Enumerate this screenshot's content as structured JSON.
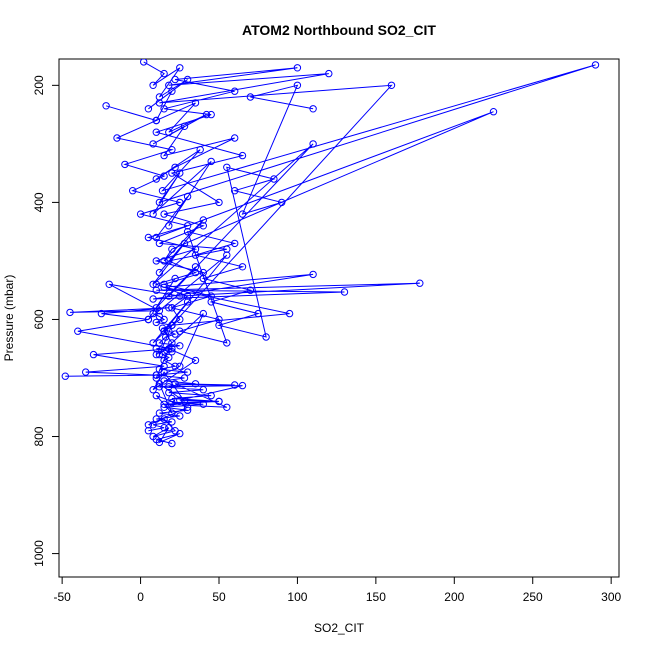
{
  "chart_data": {
    "type": "scatter",
    "title": "ATOM2 Northbound SO2_CIT",
    "xlabel": "SO2_CIT",
    "ylabel": "Pressure (mbar)",
    "xlim": [
      -52,
      305
    ],
    "ylim": [
      1040,
      155
    ],
    "y_reversed": true,
    "x_ticks": [
      -50,
      0,
      50,
      100,
      150,
      200,
      250,
      300
    ],
    "y_ticks": [
      200,
      400,
      600,
      800,
      1000
    ],
    "grid": false,
    "legend": "none",
    "point_style": "open-circle",
    "line_connected": true,
    "color": "#0000ff",
    "series": [
      {
        "x": [
          2,
          15,
          8,
          25,
          12,
          30,
          5,
          20,
          10,
          35,
          18,
          42,
          8,
          28,
          15,
          60,
          22,
          10,
          38,
          14,
          290,
          12,
          25,
          8,
          45,
          18,
          30,
          10,
          225,
          20,
          15,
          40,
          12,
          28,
          8,
          110,
          18,
          35,
          10,
          22,
          5,
          55,
          15,
          30,
          8,
          20,
          12,
          40,
          25,
          10,
          18,
          35,
          8,
          15,
          28,
          12,
          20,
          10,
          30,
          5,
          15,
          22,
          8,
          18,
          12,
          25,
          10,
          20
        ],
        "y": [
          160,
          180,
          200,
          170,
          220,
          190,
          240,
          210,
          260,
          230,
          280,
          250,
          300,
          270,
          320,
          290,
          340,
          360,
          310,
          380,
          165,
          400,
          350,
          420,
          330,
          440,
          390,
          460,
          245,
          480,
          500,
          430,
          520,
          470,
          540,
          300,
          560,
          510,
          580,
          530,
          600,
          490,
          620,
          570,
          640,
          610,
          660,
          590,
          680,
          700,
          650,
          670,
          720,
          690,
          740,
          710,
          760,
          730,
          750,
          780,
          770,
          790,
          800,
          785,
          810,
          795,
          805,
          812
        ]
      },
      {
        "x": [
          -48,
          10,
          -35,
          15,
          -30,
          20,
          -40,
          5,
          -25,
          18,
          -45,
          12,
          -20,
          25,
          178,
          10,
          130,
          8,
          110,
          15,
          95,
          20,
          160,
          12,
          120,
          18,
          100,
          22,
          60,
          15,
          45,
          10,
          65,
          20,
          50,
          15,
          40,
          12,
          55,
          18,
          35,
          10,
          30,
          20,
          25,
          15,
          20,
          10
        ],
        "y": [
          697,
          695,
          690,
          680,
          660,
          650,
          620,
          600,
          590,
          580,
          588,
          585,
          540,
          560,
          538,
          550,
          553,
          565,
          523,
          545,
          590,
          610,
          200,
          230,
          180,
          200,
          170,
          190,
          210,
          240,
          250,
          280,
          320,
          350,
          400,
          420,
          440,
          470,
          480,
          500,
          520,
          540,
          560,
          580,
          600,
          620,
          640,
          660
        ]
      },
      {
        "x": [
          8,
          12,
          15,
          10,
          20,
          14,
          18,
          22,
          16,
          12,
          25,
          10,
          20,
          14,
          18,
          15,
          22,
          12,
          30,
          10,
          28,
          15,
          35,
          12,
          40,
          18,
          45,
          20,
          50,
          15,
          55,
          22,
          60,
          18,
          65,
          25,
          50,
          20,
          40,
          15,
          30,
          12,
          25,
          10,
          20,
          8,
          15,
          5
        ],
        "y": [
          590,
          595,
          600,
          605,
          610,
          615,
          620,
          625,
          630,
          640,
          645,
          650,
          655,
          660,
          665,
          670,
          680,
          685,
          690,
          695,
          700,
          705,
          710,
          715,
          720,
          725,
          730,
          735,
          740,
          745,
          750,
          710,
          712,
          715,
          713,
          738,
          740,
          742,
          745,
          750,
          755,
          760,
          765,
          770,
          775,
          780,
          785,
          790
        ]
      },
      {
        "x": [
          -22,
          10,
          -15,
          20,
          -10,
          15,
          -5,
          25,
          0,
          30,
          5,
          35,
          10,
          40,
          15,
          45,
          20,
          50,
          25,
          55,
          30,
          60,
          35,
          65,
          40,
          70,
          45,
          75,
          50,
          80,
          55,
          85,
          60,
          90,
          65,
          100,
          70,
          110
        ],
        "y": [
          235,
          260,
          290,
          310,
          335,
          355,
          380,
          400,
          420,
          440,
          460,
          480,
          500,
          520,
          540,
          560,
          580,
          600,
          620,
          640,
          450,
          470,
          490,
          510,
          530,
          550,
          570,
          590,
          610,
          630,
          340,
          360,
          380,
          400,
          420,
          200,
          220,
          240
        ]
      }
    ]
  }
}
